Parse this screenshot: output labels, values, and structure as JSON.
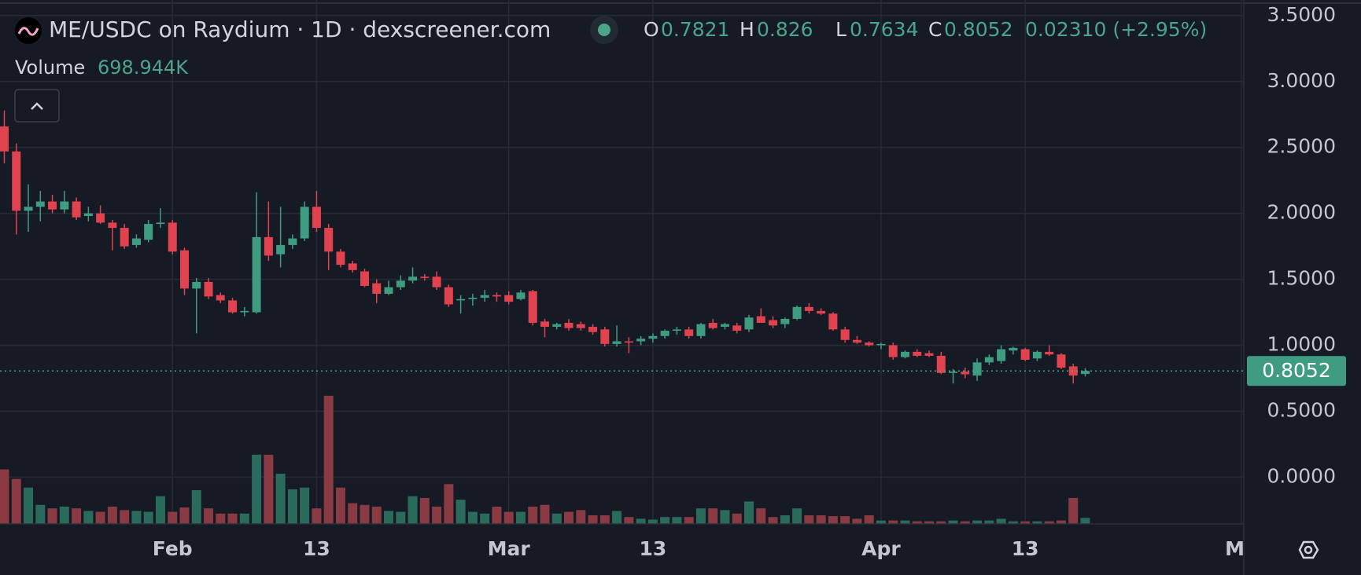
{
  "chart_data": {
    "type": "candlestick",
    "title": "ME/USDC on Raydium · 1D · dexscreener.com",
    "ohlc_labels": [
      "O",
      "H",
      "L",
      "C"
    ],
    "change": "0.02310 (+2.95%)",
    "volume_title": "Volume",
    "volume_display": "698.944K",
    "up_color": "#3f9c80",
    "down_color": "#e0434f",
    "volume_up_color": "#2a6b5c",
    "volume_down_color": "#8a3a43",
    "open": [
      2.66,
      2.47,
      2.02,
      2.05,
      2.09,
      2.03,
      2.09,
      1.98,
      2.0,
      1.93,
      1.89,
      1.76,
      1.8,
      1.92,
      1.93,
      1.72,
      1.43,
      1.48,
      1.38,
      1.34,
      1.25,
      1.25,
      1.82,
      1.69,
      1.76,
      1.81,
      2.05,
      1.89,
      1.71,
      1.62,
      1.56,
      1.47,
      1.39,
      1.44,
      1.49,
      1.52,
      1.52,
      1.44,
      1.34,
      1.35,
      1.36,
      1.38,
      1.38,
      1.35,
      1.41,
      1.18,
      1.14,
      1.17,
      1.16,
      1.14,
      1.12,
      1.01,
      1.03,
      1.03,
      1.05,
      1.07,
      1.11,
      1.12,
      1.07,
      1.17,
      1.14,
      1.15,
      1.12,
      1.22,
      1.19,
      1.16,
      1.2,
      1.29,
      1.26,
      1.24,
      1.12,
      1.04,
      1.02,
      1.0,
      1.0,
      0.91,
      0.95,
      0.94,
      0.92,
      0.79,
      0.8,
      0.77,
      0.87,
      0.88,
      0.96,
      0.97,
      0.9,
      0.95,
      0.93,
      0.84,
      0.7821
    ],
    "high": [
      2.78,
      2.53,
      2.22,
      2.17,
      2.14,
      2.17,
      2.12,
      2.05,
      2.06,
      1.95,
      1.92,
      1.84,
      1.95,
      2.04,
      1.95,
      1.74,
      1.51,
      1.51,
      1.4,
      1.36,
      1.29,
      2.16,
      2.09,
      2.05,
      1.84,
      2.09,
      2.17,
      1.92,
      1.73,
      1.64,
      1.58,
      1.5,
      1.49,
      1.53,
      1.59,
      1.54,
      1.56,
      1.46,
      1.38,
      1.39,
      1.42,
      1.4,
      1.41,
      1.42,
      1.42,
      1.2,
      1.17,
      1.2,
      1.18,
      1.16,
      1.14,
      1.15,
      1.06,
      1.07,
      1.09,
      1.12,
      1.14,
      1.14,
      1.17,
      1.2,
      1.17,
      1.17,
      1.23,
      1.28,
      1.22,
      1.21,
      1.3,
      1.32,
      1.28,
      1.25,
      1.14,
      1.07,
      1.03,
      1.02,
      1.02,
      0.96,
      0.97,
      0.96,
      0.95,
      0.82,
      0.83,
      0.9,
      0.93,
      1.0,
      0.99,
      0.98,
      0.96,
      1.0,
      0.94,
      0.86,
      0.826
    ],
    "low": [
      2.38,
      1.84,
      1.86,
      1.94,
      2.0,
      2.0,
      1.95,
      1.94,
      1.92,
      1.72,
      1.73,
      1.74,
      1.78,
      1.89,
      1.69,
      1.38,
      1.09,
      1.35,
      1.32,
      1.24,
      1.22,
      1.24,
      1.64,
      1.59,
      1.73,
      1.79,
      1.86,
      1.57,
      1.59,
      1.55,
      1.44,
      1.32,
      1.38,
      1.42,
      1.47,
      1.49,
      1.42,
      1.29,
      1.24,
      1.3,
      1.33,
      1.33,
      1.31,
      1.34,
      1.15,
      1.06,
      1.12,
      1.11,
      1.11,
      1.08,
      0.99,
      0.99,
      0.94,
      1.0,
      1.02,
      1.05,
      1.08,
      1.05,
      1.05,
      1.12,
      1.12,
      1.09,
      1.1,
      1.17,
      1.13,
      1.13,
      1.19,
      1.24,
      1.23,
      1.11,
      1.02,
      1.01,
      0.99,
      0.97,
      0.89,
      0.9,
      0.91,
      0.91,
      0.78,
      0.71,
      0.75,
      0.73,
      0.85,
      0.86,
      0.93,
      0.88,
      0.88,
      0.92,
      0.82,
      0.71,
      0.7634
    ],
    "close": [
      2.47,
      2.02,
      2.05,
      2.09,
      2.03,
      2.09,
      1.97,
      2.0,
      1.93,
      1.89,
      1.75,
      1.81,
      1.92,
      1.93,
      1.71,
      1.43,
      1.48,
      1.37,
      1.34,
      1.25,
      1.26,
      1.82,
      1.68,
      1.76,
      1.81,
      2.05,
      1.89,
      1.71,
      1.61,
      1.57,
      1.45,
      1.39,
      1.44,
      1.49,
      1.52,
      1.51,
      1.44,
      1.31,
      1.35,
      1.36,
      1.38,
      1.37,
      1.33,
      1.4,
      1.17,
      1.14,
      1.16,
      1.13,
      1.13,
      1.1,
      1.01,
      1.03,
      1.02,
      1.05,
      1.07,
      1.11,
      1.12,
      1.07,
      1.16,
      1.13,
      1.16,
      1.11,
      1.21,
      1.17,
      1.15,
      1.2,
      1.29,
      1.26,
      1.24,
      1.12,
      1.04,
      1.02,
      1.0,
      1.01,
      0.91,
      0.95,
      0.92,
      0.92,
      0.79,
      0.8,
      0.78,
      0.87,
      0.91,
      0.97,
      0.98,
      0.89,
      0.95,
      0.93,
      0.83,
      0.77,
      0.8052
    ],
    "volume": [
      6300000,
      5200000,
      4200000,
      2200000,
      1800000,
      2000000,
      1800000,
      1500000,
      1400000,
      2000000,
      1600000,
      1500000,
      1400000,
      3200000,
      1400000,
      1900000,
      3900000,
      1800000,
      1200000,
      1200000,
      1200000,
      8000000,
      8000000,
      5800000,
      4000000,
      4200000,
      1800000,
      14800000,
      4200000,
      2400000,
      2200000,
      2000000,
      1500000,
      1400000,
      3200000,
      3000000,
      2000000,
      4600000,
      2800000,
      1400000,
      1200000,
      2000000,
      1400000,
      1400000,
      2000000,
      2200000,
      1200000,
      1400000,
      1600000,
      1000000,
      1000000,
      1500000,
      800000,
      600000,
      500000,
      800000,
      800000,
      800000,
      1800000,
      1800000,
      1600000,
      1200000,
      2600000,
      1800000,
      800000,
      1000000,
      1800000,
      1000000,
      1000000,
      900000,
      900000,
      600000,
      1000000,
      400000,
      400000,
      400000,
      300000,
      300000,
      300000,
      400000,
      300000,
      400000,
      400000,
      600000,
      300000,
      300000,
      300000,
      300000,
      400000,
      3000000,
      698944
    ],
    "xlim": [
      -0.36,
      103.2
    ],
    "xticks": [
      {
        "value": 14,
        "label": "Feb"
      },
      {
        "value": 26,
        "label": "13"
      },
      {
        "value": 42,
        "label": "Mar"
      },
      {
        "value": 54,
        "label": "13"
      },
      {
        "value": 73,
        "label": "Apr"
      },
      {
        "value": 85,
        "label": "13"
      },
      {
        "value": 103,
        "label": "Ma"
      }
    ],
    "ylim": [
      -0.355,
      3.618
    ],
    "yticks": [
      {
        "value": 0,
        "label": "0.0000"
      },
      {
        "value": 0.5,
        "label": "0.5000"
      },
      {
        "value": 1,
        "label": "1.0000"
      },
      {
        "value": 1.5,
        "label": "1.5000"
      },
      {
        "value": 2,
        "label": "2.0000"
      },
      {
        "value": 2.5,
        "label": "2.5000"
      },
      {
        "value": 3,
        "label": "3.0000"
      },
      {
        "value": 3.5,
        "label": "3.5000"
      }
    ],
    "volume_ylim": [
      0,
      60500000
    ],
    "grid": true
  }
}
